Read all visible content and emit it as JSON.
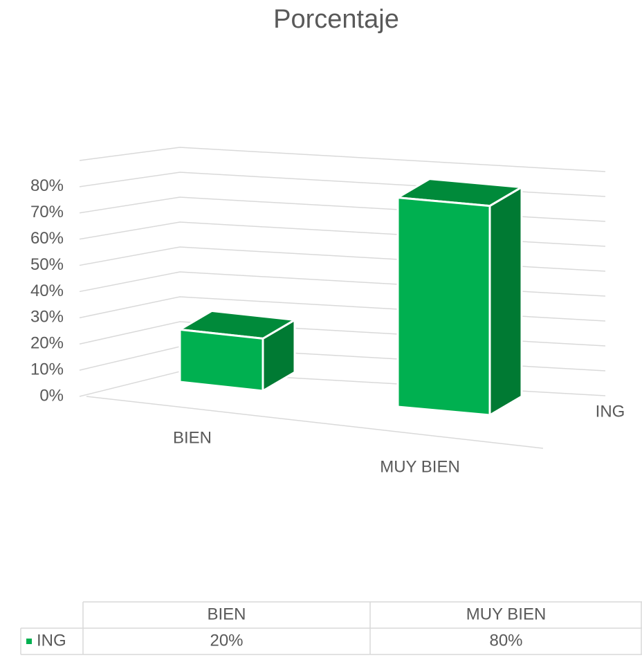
{
  "chart_data": {
    "type": "bar3d",
    "title": "Porcentaje",
    "categories": [
      "BIEN",
      "MUY BIEN"
    ],
    "series": [
      {
        "name": "ING",
        "color": "#00b050",
        "values": [
          20,
          80
        ],
        "value_labels": [
          "20%",
          "80%"
        ]
      }
    ],
    "ylim": [
      0,
      90
    ],
    "yticks": [
      {
        "value": 0,
        "label": "0%"
      },
      {
        "value": 10,
        "label": "10%"
      },
      {
        "value": 20,
        "label": "20%"
      },
      {
        "value": 30,
        "label": "30%"
      },
      {
        "value": 40,
        "label": "40%"
      },
      {
        "value": 50,
        "label": "50%"
      },
      {
        "value": 60,
        "label": "60%"
      },
      {
        "value": 70,
        "label": "70%"
      },
      {
        "value": 80,
        "label": "80%"
      }
    ],
    "grid": true,
    "data_table": true
  }
}
